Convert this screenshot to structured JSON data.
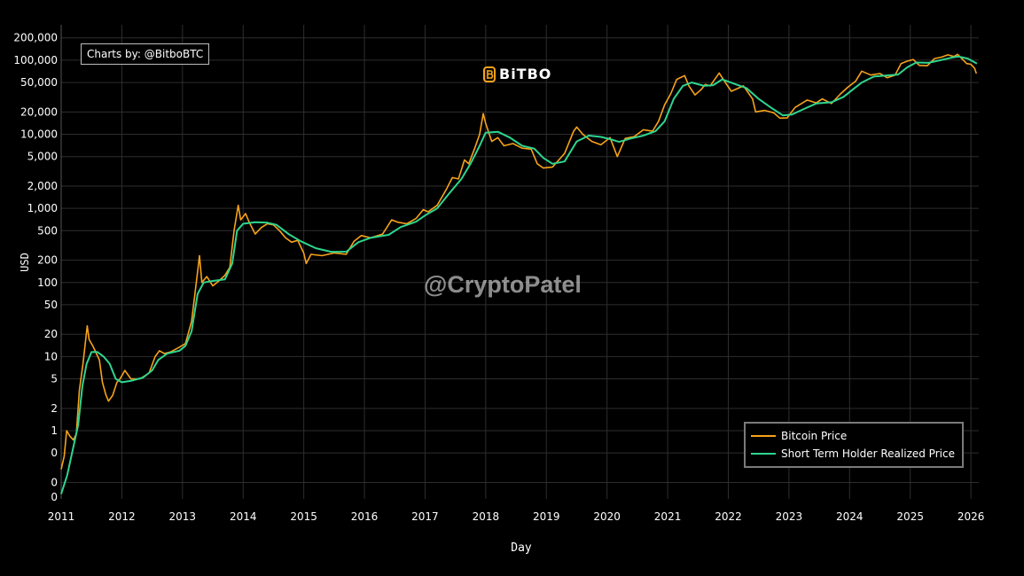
{
  "header": {
    "credit": "Charts by: @BitboBTC",
    "logo_text": "BiTBO",
    "watermark": "@CryptoPatel"
  },
  "colors": {
    "background": "#000000",
    "grid": "#2e2e2e",
    "price": "#f7a21b",
    "sth": "#2fd58f"
  },
  "chart_data": {
    "type": "line",
    "title": "",
    "xlabel": "Day",
    "ylabel": "USD",
    "yscale": "log",
    "xlim": [
      2011.0,
      2026.13
    ],
    "ylim": [
      0.12,
      300000
    ],
    "x_ticks": [
      "2011",
      "2012",
      "2013",
      "2014",
      "2015",
      "2016",
      "2017",
      "2018",
      "2019",
      "2020",
      "2021",
      "2022",
      "2023",
      "2024",
      "2025",
      "2026"
    ],
    "y_ticks": [
      {
        "value": 0.2,
        "label": "0"
      },
      {
        "value": 0.5,
        "label": "0"
      },
      {
        "value": 1,
        "label": "1"
      },
      {
        "value": 2,
        "label": "2"
      },
      {
        "value": 5,
        "label": "5"
      },
      {
        "value": 10,
        "label": "10"
      },
      {
        "value": 20,
        "label": "20"
      },
      {
        "value": 50,
        "label": "50"
      },
      {
        "value": 100,
        "label": "100"
      },
      {
        "value": 200,
        "label": "200"
      },
      {
        "value": 500,
        "label": "500"
      },
      {
        "value": 1000,
        "label": "1,000"
      },
      {
        "value": 2000,
        "label": "2,000"
      },
      {
        "value": 5000,
        "label": "5,000"
      },
      {
        "value": 10000,
        "label": "10,000"
      },
      {
        "value": 20000,
        "label": "20,000"
      },
      {
        "value": 50000,
        "label": "50,000"
      },
      {
        "value": 100000,
        "label": "100,000"
      },
      {
        "value": 200000,
        "label": "200,000"
      }
    ],
    "grid": true,
    "legend_position": "bottom-right",
    "series": [
      {
        "name": "Bitcoin Price",
        "color": "#f7a21b",
        "points": [
          [
            2011.0,
            0.3
          ],
          [
            2011.05,
            0.45
          ],
          [
            2011.09,
            1.0
          ],
          [
            2011.14,
            0.85
          ],
          [
            2011.2,
            0.75
          ],
          [
            2011.25,
            0.9
          ],
          [
            2011.3,
            3.5
          ],
          [
            2011.36,
            8
          ],
          [
            2011.43,
            26
          ],
          [
            2011.46,
            17
          ],
          [
            2011.52,
            14
          ],
          [
            2011.58,
            11
          ],
          [
            2011.63,
            9
          ],
          [
            2011.68,
            4.5
          ],
          [
            2011.74,
            3
          ],
          [
            2011.78,
            2.5
          ],
          [
            2011.85,
            3
          ],
          [
            2011.92,
            4.5
          ],
          [
            2011.97,
            5
          ],
          [
            2012.05,
            6.5
          ],
          [
            2012.15,
            5
          ],
          [
            2012.3,
            5
          ],
          [
            2012.45,
            6
          ],
          [
            2012.55,
            10
          ],
          [
            2012.62,
            12
          ],
          [
            2012.7,
            11
          ],
          [
            2012.8,
            11.5
          ],
          [
            2012.92,
            13
          ],
          [
            2013.05,
            15
          ],
          [
            2013.15,
            30
          ],
          [
            2013.25,
            140
          ],
          [
            2013.28,
            230
          ],
          [
            2013.32,
            100
          ],
          [
            2013.4,
            120
          ],
          [
            2013.5,
            90
          ],
          [
            2013.6,
            105
          ],
          [
            2013.7,
            125
          ],
          [
            2013.78,
            160
          ],
          [
            2013.85,
            500
          ],
          [
            2013.92,
            1100
          ],
          [
            2013.96,
            700
          ],
          [
            2014.04,
            850
          ],
          [
            2014.1,
            650
          ],
          [
            2014.2,
            450
          ],
          [
            2014.3,
            550
          ],
          [
            2014.4,
            620
          ],
          [
            2014.5,
            600
          ],
          [
            2014.6,
            500
          ],
          [
            2014.7,
            400
          ],
          [
            2014.8,
            350
          ],
          [
            2014.9,
            370
          ],
          [
            2015.0,
            250
          ],
          [
            2015.04,
            180
          ],
          [
            2015.12,
            240
          ],
          [
            2015.3,
            230
          ],
          [
            2015.5,
            250
          ],
          [
            2015.7,
            240
          ],
          [
            2015.83,
            360
          ],
          [
            2015.95,
            430
          ],
          [
            2016.1,
            400
          ],
          [
            2016.3,
            450
          ],
          [
            2016.45,
            700
          ],
          [
            2016.55,
            650
          ],
          [
            2016.7,
            620
          ],
          [
            2016.85,
            730
          ],
          [
            2016.97,
            960
          ],
          [
            2017.05,
            900
          ],
          [
            2017.2,
            1100
          ],
          [
            2017.35,
            1800
          ],
          [
            2017.45,
            2600
          ],
          [
            2017.55,
            2500
          ],
          [
            2017.65,
            4500
          ],
          [
            2017.72,
            4000
          ],
          [
            2017.82,
            6500
          ],
          [
            2017.9,
            10000
          ],
          [
            2017.96,
            19000
          ],
          [
            2018.0,
            14000
          ],
          [
            2018.1,
            8000
          ],
          [
            2018.2,
            9000
          ],
          [
            2018.3,
            7000
          ],
          [
            2018.45,
            7500
          ],
          [
            2018.6,
            6500
          ],
          [
            2018.75,
            6300
          ],
          [
            2018.85,
            4000
          ],
          [
            2018.95,
            3500
          ],
          [
            2019.1,
            3600
          ],
          [
            2019.3,
            5500
          ],
          [
            2019.45,
            11000
          ],
          [
            2019.5,
            12500
          ],
          [
            2019.6,
            10000
          ],
          [
            2019.75,
            8000
          ],
          [
            2019.9,
            7200
          ],
          [
            2020.05,
            9000
          ],
          [
            2020.17,
            5000
          ],
          [
            2020.3,
            8800
          ],
          [
            2020.45,
            9300
          ],
          [
            2020.6,
            11500
          ],
          [
            2020.75,
            11000
          ],
          [
            2020.85,
            15000
          ],
          [
            2020.95,
            25000
          ],
          [
            2021.05,
            35000
          ],
          [
            2021.15,
            55000
          ],
          [
            2021.28,
            62000
          ],
          [
            2021.35,
            45000
          ],
          [
            2021.45,
            34000
          ],
          [
            2021.55,
            40000
          ],
          [
            2021.62,
            47000
          ],
          [
            2021.7,
            45000
          ],
          [
            2021.85,
            67000
          ],
          [
            2021.95,
            50000
          ],
          [
            2022.05,
            38000
          ],
          [
            2022.25,
            45000
          ],
          [
            2022.4,
            30000
          ],
          [
            2022.45,
            20000
          ],
          [
            2022.6,
            21000
          ],
          [
            2022.75,
            19500
          ],
          [
            2022.85,
            16500
          ],
          [
            2022.97,
            16600
          ],
          [
            2023.1,
            23000
          ],
          [
            2023.3,
            29000
          ],
          [
            2023.45,
            26500
          ],
          [
            2023.55,
            30000
          ],
          [
            2023.7,
            26000
          ],
          [
            2023.85,
            35000
          ],
          [
            2023.97,
            43000
          ],
          [
            2024.1,
            52000
          ],
          [
            2024.2,
            71000
          ],
          [
            2024.35,
            63000
          ],
          [
            2024.5,
            66000
          ],
          [
            2024.62,
            58000
          ],
          [
            2024.75,
            63000
          ],
          [
            2024.85,
            90000
          ],
          [
            2024.95,
            97000
          ],
          [
            2025.05,
            102000
          ],
          [
            2025.15,
            85000
          ],
          [
            2025.28,
            84000
          ],
          [
            2025.4,
            105000
          ],
          [
            2025.52,
            110000
          ],
          [
            2025.62,
            118000
          ],
          [
            2025.72,
            112000
          ],
          [
            2025.78,
            120000
          ],
          [
            2025.85,
            105000
          ],
          [
            2025.93,
            90000
          ],
          [
            2026.0,
            88000
          ],
          [
            2026.06,
            78000
          ],
          [
            2026.09,
            66000
          ]
        ]
      },
      {
        "name": "Short Term Holder Realized Price",
        "color": "#2fd58f",
        "points": [
          [
            2011.0,
            0.14
          ],
          [
            2011.1,
            0.25
          ],
          [
            2011.2,
            0.6
          ],
          [
            2011.28,
            1.2
          ],
          [
            2011.35,
            4
          ],
          [
            2011.42,
            8
          ],
          [
            2011.5,
            11.5
          ],
          [
            2011.6,
            11.5
          ],
          [
            2011.7,
            10
          ],
          [
            2011.8,
            8
          ],
          [
            2011.9,
            5
          ],
          [
            2012.0,
            4.5
          ],
          [
            2012.15,
            4.7
          ],
          [
            2012.35,
            5.2
          ],
          [
            2012.5,
            6.5
          ],
          [
            2012.6,
            9
          ],
          [
            2012.75,
            11
          ],
          [
            2012.95,
            12
          ],
          [
            2013.05,
            14
          ],
          [
            2013.15,
            22
          ],
          [
            2013.25,
            70
          ],
          [
            2013.35,
            100
          ],
          [
            2013.5,
            105
          ],
          [
            2013.7,
            110
          ],
          [
            2013.82,
            180
          ],
          [
            2013.9,
            500
          ],
          [
            2014.0,
            620
          ],
          [
            2014.2,
            650
          ],
          [
            2014.4,
            640
          ],
          [
            2014.55,
            600
          ],
          [
            2014.75,
            450
          ],
          [
            2014.95,
            360
          ],
          [
            2015.2,
            290
          ],
          [
            2015.45,
            260
          ],
          [
            2015.7,
            260
          ],
          [
            2015.9,
            350
          ],
          [
            2016.1,
            400
          ],
          [
            2016.4,
            440
          ],
          [
            2016.6,
            560
          ],
          [
            2016.85,
            660
          ],
          [
            2017.0,
            800
          ],
          [
            2017.2,
            1000
          ],
          [
            2017.4,
            1600
          ],
          [
            2017.6,
            2500
          ],
          [
            2017.75,
            4000
          ],
          [
            2017.9,
            7000
          ],
          [
            2018.0,
            10500
          ],
          [
            2018.2,
            10800
          ],
          [
            2018.4,
            9000
          ],
          [
            2018.6,
            7000
          ],
          [
            2018.8,
            6400
          ],
          [
            2018.95,
            4800
          ],
          [
            2019.1,
            4000
          ],
          [
            2019.3,
            4300
          ],
          [
            2019.5,
            8000
          ],
          [
            2019.7,
            9600
          ],
          [
            2019.9,
            9200
          ],
          [
            2020.05,
            8600
          ],
          [
            2020.2,
            7900
          ],
          [
            2020.4,
            8800
          ],
          [
            2020.6,
            9600
          ],
          [
            2020.8,
            11000
          ],
          [
            2020.95,
            15000
          ],
          [
            2021.1,
            30000
          ],
          [
            2021.25,
            45000
          ],
          [
            2021.4,
            50000
          ],
          [
            2021.6,
            45000
          ],
          [
            2021.75,
            46000
          ],
          [
            2021.9,
            55000
          ],
          [
            2022.1,
            48000
          ],
          [
            2022.3,
            42000
          ],
          [
            2022.5,
            30000
          ],
          [
            2022.7,
            23000
          ],
          [
            2022.9,
            18000
          ],
          [
            2023.05,
            18500
          ],
          [
            2023.25,
            22000
          ],
          [
            2023.45,
            26000
          ],
          [
            2023.7,
            27000
          ],
          [
            2023.9,
            32000
          ],
          [
            2024.05,
            40000
          ],
          [
            2024.2,
            50000
          ],
          [
            2024.4,
            60000
          ],
          [
            2024.6,
            62000
          ],
          [
            2024.8,
            64000
          ],
          [
            2024.95,
            80000
          ],
          [
            2025.1,
            93000
          ],
          [
            2025.3,
            92000
          ],
          [
            2025.5,
            100000
          ],
          [
            2025.7,
            109000
          ],
          [
            2025.8,
            112000
          ],
          [
            2025.95,
            105000
          ],
          [
            2026.1,
            90000
          ]
        ]
      }
    ]
  }
}
